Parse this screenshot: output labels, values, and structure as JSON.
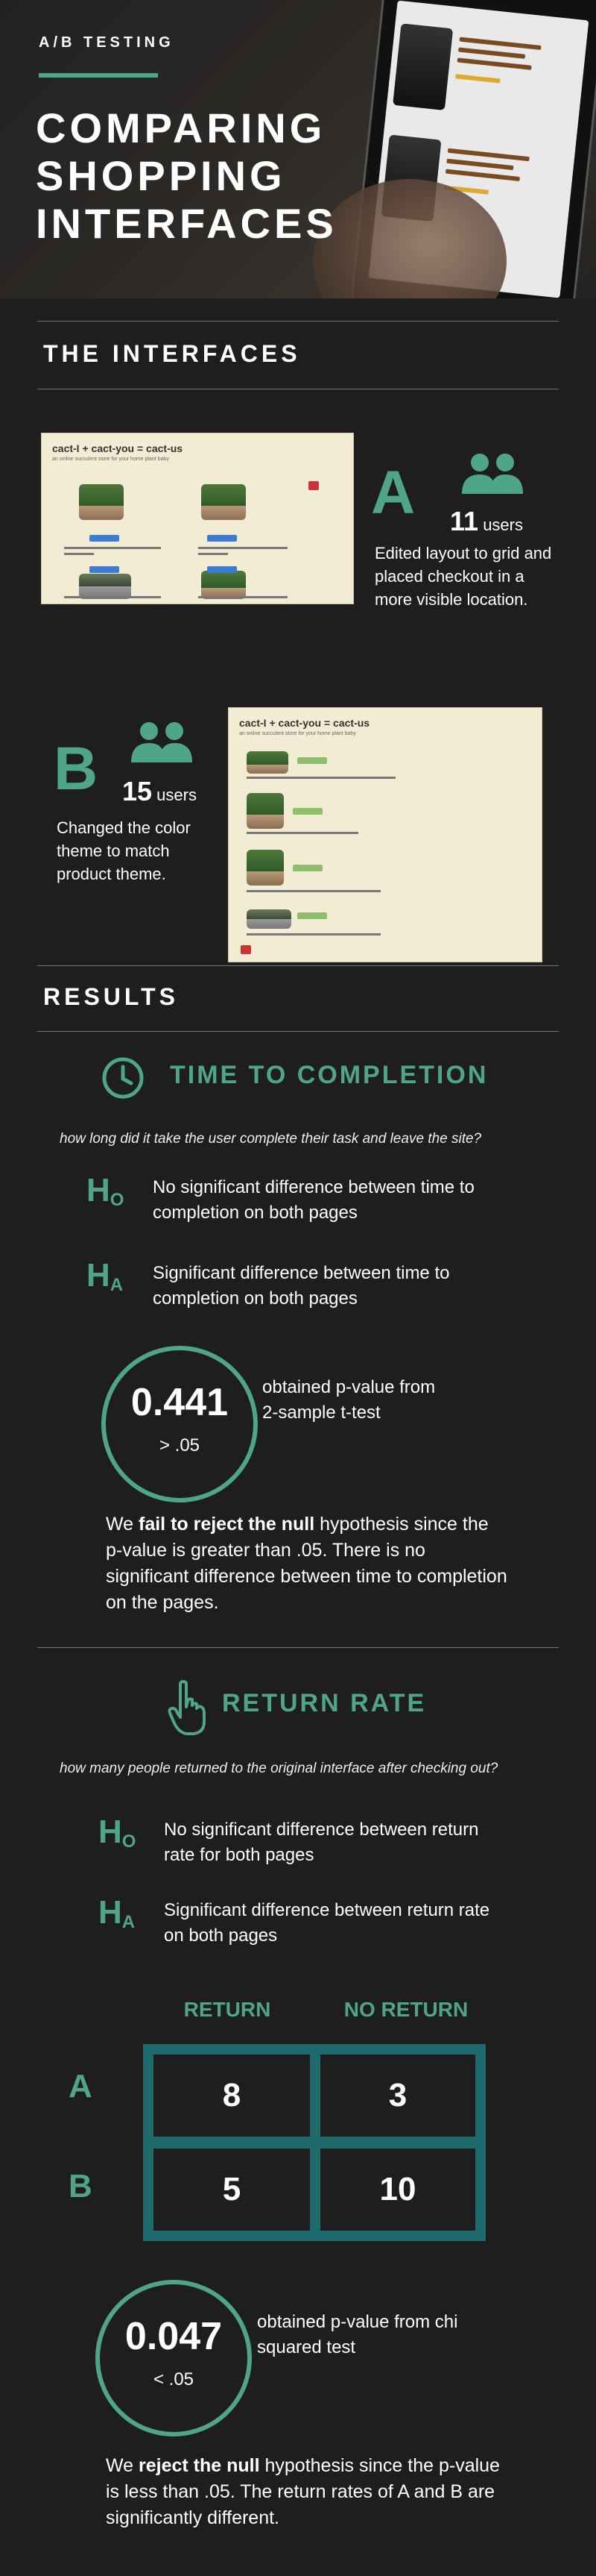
{
  "hero": {
    "kicker": "A/B TESTING",
    "title": "COMPARING SHOPPING INTERFACES"
  },
  "interfaces": {
    "section_title": "THE INTERFACES",
    "screenshot_title": "cact-I + cact-you = cact-us",
    "screenshot_subtitle": "an online succulent store for your home plant baby",
    "a": {
      "letter": "A",
      "users_count": "11",
      "users_label": "users",
      "description": "Edited layout to grid and placed checkout in a more visible location."
    },
    "b": {
      "letter": "B",
      "users_count": "15",
      "users_label": "users",
      "description": "Changed the color theme to match product theme."
    }
  },
  "results": {
    "section_title": "RESULTS",
    "time": {
      "title": "TIME TO COMPLETION",
      "question": "how long did it take the user complete their task and leave the site?",
      "h0_symbol": "H",
      "h0_sub": "O",
      "h0_text": "No significant difference between time to completion on both pages",
      "ha_symbol": "H",
      "ha_sub": "A",
      "ha_text": "Significant difference between time to completion on both pages",
      "p_value": "0.441",
      "comparison": "> .05",
      "p_note": "obtained p-value from 2-sample t-test",
      "conclusion_pre": "We ",
      "conclusion_bold": "fail to reject the null",
      "conclusion_post": " hypothesis since the p-value is greater than .05. There is no significant difference between time to completion on the pages."
    },
    "return": {
      "title": "RETURN RATE",
      "question": "how many people returned to the original interface after checking out?",
      "h0_symbol": "H",
      "h0_sub": "O",
      "h0_text": "No significant difference between return rate for both pages",
      "ha_symbol": "H",
      "ha_sub": "A",
      "ha_text": "Significant difference between return rate on both pages",
      "table": {
        "col_headers": [
          "RETURN",
          "NO RETURN"
        ],
        "rows": [
          {
            "label": "A",
            "values": [
              "8",
              "3"
            ]
          },
          {
            "label": "B",
            "values": [
              "5",
              "10"
            ]
          }
        ]
      },
      "p_value": "0.047",
      "comparison": "< .05",
      "p_note": "obtained p-value from chi squared test",
      "conclusion_pre": "We ",
      "conclusion_bold": "reject the null",
      "conclusion_post": " hypothesis since the p-value is less than .05. The return rates of A and B are significantly different."
    }
  },
  "colors": {
    "accent": "#4fa58a",
    "background": "#1e1e1e",
    "table_frame": "#1f6b6b"
  }
}
